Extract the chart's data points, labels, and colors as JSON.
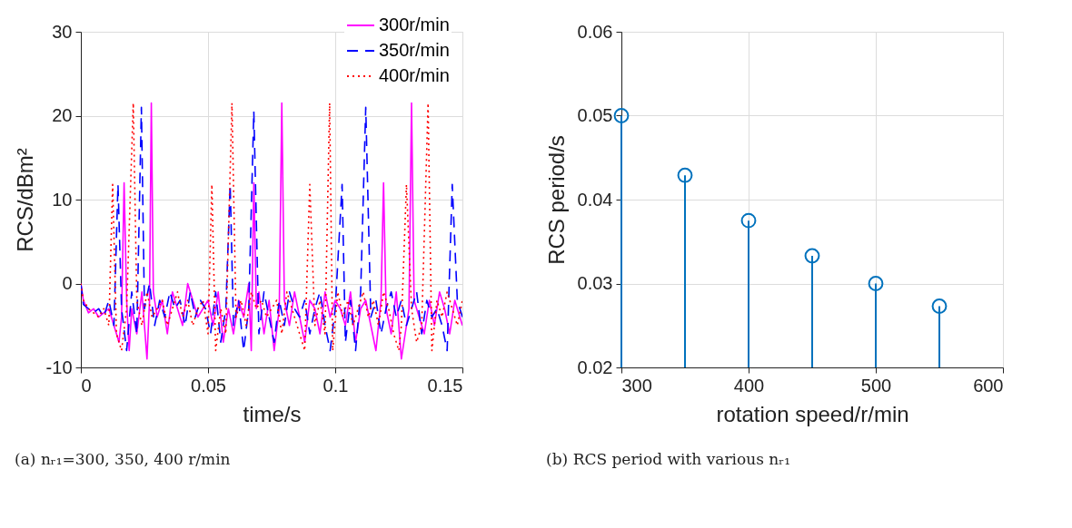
{
  "chart_data": [
    {
      "type": "line",
      "xlabel": "time/s",
      "ylabel": "RCS/dBm²",
      "xlim": [
        0,
        0.15
      ],
      "ylim": [
        -10,
        30
      ],
      "xticks": [
        0,
        0.05,
        0.1,
        0.15
      ],
      "yticks": [
        -10,
        0,
        10,
        20,
        30
      ],
      "grid": true,
      "legend": "top right",
      "annotations": [
        "(a) nᵣ₁=300, 350, 400 r/min"
      ],
      "series": [
        {
          "name": "300r/min",
          "color": "#ff00ff",
          "line_style": "solid",
          "x": [
            0,
            0.001,
            0.003,
            0.005,
            0.007,
            0.009,
            0.011,
            0.013,
            0.015,
            0.016,
            0.017,
            0.018,
            0.019,
            0.02,
            0.022,
            0.024,
            0.026,
            0.027,
            0.0277,
            0.0285,
            0.03,
            0.032,
            0.034,
            0.036,
            0.038,
            0.04,
            0.042,
            0.044,
            0.046,
            0.048,
            0.05,
            0.052,
            0.054,
            0.056,
            0.058,
            0.06,
            0.062,
            0.064,
            0.066,
            0.067,
            0.068,
            0.069,
            0.07,
            0.072,
            0.074,
            0.076,
            0.078,
            0.079,
            0.08,
            0.082,
            0.084,
            0.086,
            0.088,
            0.09,
            0.092,
            0.094,
            0.096,
            0.098,
            0.1,
            0.102,
            0.104,
            0.106,
            0.108,
            0.11,
            0.112,
            0.114,
            0.116,
            0.118,
            0.119,
            0.12,
            0.122,
            0.124,
            0.126,
            0.129,
            0.13,
            0.131,
            0.133,
            0.135,
            0.137,
            0.139,
            0.141,
            0.143,
            0.145,
            0.147,
            0.149,
            0.15
          ],
          "values": [
            0,
            -2,
            -3.5,
            -3,
            -4,
            -3.5,
            -3,
            -5,
            -7,
            -4,
            12,
            -2,
            -8,
            -3,
            -6,
            -1,
            -9,
            -2,
            21.5,
            -1,
            -4,
            -2,
            -6,
            -1,
            -3,
            -5,
            0,
            -2,
            -4,
            -3,
            -2,
            -5,
            -1,
            -7,
            -3,
            -6,
            -2,
            -4,
            0,
            -8,
            12,
            -3,
            -1,
            -6,
            -2,
            -8,
            -3,
            21.5,
            -2,
            -5,
            -1,
            -4,
            -7,
            -2,
            -3,
            -6,
            -1,
            -4,
            -2,
            -3,
            -5,
            -1,
            -7,
            -3,
            -2,
            -5,
            -8,
            -2,
            12,
            -3,
            -6,
            -1,
            -9,
            -3,
            21.5,
            -2,
            -4,
            -6,
            -2,
            -5,
            -1,
            -3,
            -6,
            -2,
            -4,
            -5
          ]
        },
        {
          "name": "350r/min",
          "color": "#0000ff",
          "line_style": "dashed",
          "x": [
            0,
            0.001,
            0.003,
            0.005,
            0.007,
            0.009,
            0.011,
            0.013,
            0.0146,
            0.016,
            0.018,
            0.02,
            0.022,
            0.0238,
            0.025,
            0.027,
            0.029,
            0.031,
            0.033,
            0.035,
            0.037,
            0.039,
            0.041,
            0.043,
            0.045,
            0.047,
            0.049,
            0.051,
            0.053,
            0.055,
            0.057,
            0.0587,
            0.06,
            0.062,
            0.064,
            0.066,
            0.068,
            0.07,
            0.072,
            0.074,
            0.076,
            0.078,
            0.08,
            0.082,
            0.084,
            0.086,
            0.088,
            0.09,
            0.092,
            0.094,
            0.096,
            0.098,
            0.1,
            0.1027,
            0.104,
            0.106,
            0.108,
            0.11,
            0.112,
            0.114,
            0.116,
            0.118,
            0.12,
            0.122,
            0.124,
            0.126,
            0.128,
            0.13,
            0.132,
            0.134,
            0.136,
            0.138,
            0.14,
            0.142,
            0.144,
            0.146,
            0.148,
            0.15
          ],
          "values": [
            0,
            -2.5,
            -3,
            -3.5,
            -3,
            -4,
            -2,
            -5,
            11.8,
            -3,
            -8,
            -1,
            -6,
            21,
            -3,
            0,
            -5,
            -2,
            -4,
            -1,
            -3,
            -2,
            -5,
            -1,
            -4,
            -2,
            -3,
            -6,
            -1,
            -7,
            -3,
            11.8,
            -5,
            -2,
            -8,
            -3,
            20.5,
            -6,
            -1,
            -4,
            -7,
            -2,
            -5,
            -1,
            -3,
            -4,
            -2,
            -6,
            -3,
            -1,
            -5,
            -8,
            -3,
            11.8,
            -7,
            -2,
            -8,
            -1,
            21,
            -4,
            -2,
            -6,
            -3,
            -1,
            -4,
            -2,
            -5,
            -3,
            -1,
            -6,
            -2,
            -4,
            -3,
            -5,
            -8,
            11.8,
            -2,
            -4
          ]
        },
        {
          "name": "400r/min",
          "color": "#ff0000",
          "line_style": "dotted",
          "x": [
            0,
            0.001,
            0.003,
            0.005,
            0.007,
            0.009,
            0.011,
            0.0125,
            0.014,
            0.016,
            0.018,
            0.0206,
            0.022,
            0.024,
            0.026,
            0.028,
            0.03,
            0.032,
            0.034,
            0.036,
            0.038,
            0.04,
            0.042,
            0.044,
            0.046,
            0.048,
            0.05,
            0.0515,
            0.053,
            0.055,
            0.057,
            0.0594,
            0.061,
            0.063,
            0.065,
            0.067,
            0.069,
            0.071,
            0.073,
            0.075,
            0.077,
            0.079,
            0.081,
            0.083,
            0.085,
            0.087,
            0.088,
            0.09,
            0.092,
            0.094,
            0.096,
            0.0978,
            0.099,
            0.101,
            0.103,
            0.105,
            0.107,
            0.109,
            0.111,
            0.113,
            0.115,
            0.117,
            0.119,
            0.121,
            0.123,
            0.125,
            0.126,
            0.128,
            0.13,
            0.132,
            0.134,
            0.1365,
            0.138,
            0.14,
            0.142,
            0.144,
            0.146,
            0.148,
            0.15
          ],
          "values": [
            0,
            -2,
            -3,
            -3.5,
            -4,
            -3,
            -5,
            11.8,
            -6,
            -8,
            -3,
            21.5,
            -2,
            -5,
            -1,
            -4,
            -3,
            -2,
            -5,
            -3,
            -1,
            -4,
            -2,
            -5,
            -3,
            -2,
            -6,
            11.8,
            -8,
            -3,
            -6,
            21.5,
            -4,
            -2,
            -5,
            -1,
            -3,
            -2,
            -4,
            -3,
            -2,
            -6,
            -1,
            -3,
            -5,
            -7,
            -8,
            11.8,
            -5,
            -2,
            -6,
            21.5,
            -8,
            -1,
            -4,
            -2,
            -5,
            -3,
            -1,
            -4,
            -2,
            -5,
            -1,
            -3,
            -6,
            -8,
            -5,
            11.8,
            -3,
            -7,
            -5,
            21.5,
            -8,
            -2,
            -4,
            -1,
            -3,
            -5,
            -2
          ]
        }
      ]
    },
    {
      "type": "lollipop",
      "xlabel": "rotation speed/r/min",
      "ylabel": "RCS period/s",
      "xlim": [
        300,
        600
      ],
      "ylim": [
        0.02,
        0.06
      ],
      "xticks": [
        300,
        400,
        500,
        600
      ],
      "yticks": [
        0.02,
        0.03,
        0.04,
        0.05,
        0.06
      ],
      "grid": true,
      "marker": "circle",
      "annotations": [
        "(b) RCS period with various nᵣ₁"
      ],
      "series": [
        {
          "color": "#0072bd",
          "x": [
            300,
            350,
            400,
            450,
            500,
            550
          ],
          "values": [
            0.05,
            0.0429,
            0.0375,
            0.0333,
            0.03,
            0.0273
          ]
        }
      ]
    }
  ]
}
